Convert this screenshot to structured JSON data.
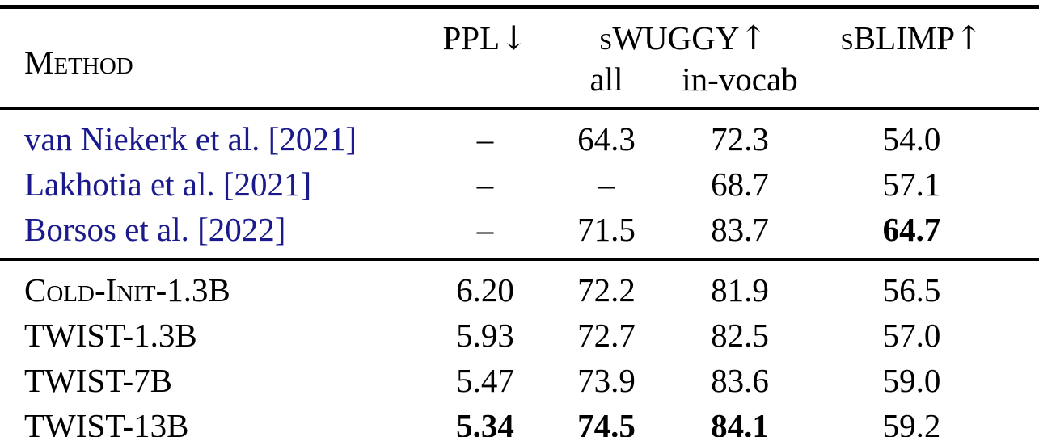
{
  "colors": {
    "citation": "#1a1a8c",
    "text": "#000000",
    "rule": "#000000",
    "background": "#ffffff"
  },
  "header": {
    "method_label": "Method",
    "ppl_label": "PPL",
    "ppl_arrow": "↓",
    "swuggy_prefix": "s",
    "swuggy_label": "WUGGY",
    "swuggy_arrow": "↑",
    "swuggy_sub_all": "all",
    "swuggy_sub_invocab": "in-vocab",
    "sblimp_prefix": "s",
    "sblimp_label": "BLIMP",
    "sblimp_arrow": "↑"
  },
  "sections": [
    {
      "name": "prior-work-baselines",
      "rows": [
        {
          "method": {
            "text": "van Niekerk et al. [2021]",
            "cite": true,
            "smallcaps": false
          },
          "cells": [
            {
              "text": "–",
              "bold": false
            },
            {
              "text": "64.3",
              "bold": false
            },
            {
              "text": "72.3",
              "bold": false
            },
            {
              "text": "54.0",
              "bold": false
            }
          ]
        },
        {
          "method": {
            "text": "Lakhotia et al. [2021]",
            "cite": true,
            "smallcaps": false
          },
          "cells": [
            {
              "text": "–",
              "bold": false
            },
            {
              "text": "–",
              "bold": false
            },
            {
              "text": "68.7",
              "bold": false
            },
            {
              "text": "57.1",
              "bold": false
            }
          ]
        },
        {
          "method": {
            "text": "Borsos et al. [2022]",
            "cite": true,
            "smallcaps": false
          },
          "cells": [
            {
              "text": "–",
              "bold": false
            },
            {
              "text": "71.5",
              "bold": false
            },
            {
              "text": "83.7",
              "bold": false
            },
            {
              "text": "64.7",
              "bold": true
            }
          ]
        }
      ]
    },
    {
      "name": "proposed-models",
      "rows": [
        {
          "method": {
            "text": "Cold-Init-1.3B",
            "cite": false,
            "smallcaps": true
          },
          "cells": [
            {
              "text": "6.20",
              "bold": false
            },
            {
              "text": "72.2",
              "bold": false
            },
            {
              "text": "81.9",
              "bold": false
            },
            {
              "text": "56.5",
              "bold": false
            }
          ]
        },
        {
          "method": {
            "text": "TWIST-1.3B",
            "cite": false,
            "smallcaps": true
          },
          "cells": [
            {
              "text": "5.93",
              "bold": false
            },
            {
              "text": "72.7",
              "bold": false
            },
            {
              "text": "82.5",
              "bold": false
            },
            {
              "text": "57.0",
              "bold": false
            }
          ]
        },
        {
          "method": {
            "text": "TWIST-7B",
            "cite": false,
            "smallcaps": true
          },
          "cells": [
            {
              "text": "5.47",
              "bold": false
            },
            {
              "text": "73.9",
              "bold": false
            },
            {
              "text": "83.6",
              "bold": false
            },
            {
              "text": "59.0",
              "bold": false
            }
          ]
        },
        {
          "method": {
            "text": "TWIST-13B",
            "cite": false,
            "smallcaps": true
          },
          "cells": [
            {
              "text": "5.34",
              "bold": true
            },
            {
              "text": "74.5",
              "bold": true
            },
            {
              "text": "84.1",
              "bold": true
            },
            {
              "text": "59.2",
              "bold": false
            }
          ]
        }
      ]
    }
  ]
}
